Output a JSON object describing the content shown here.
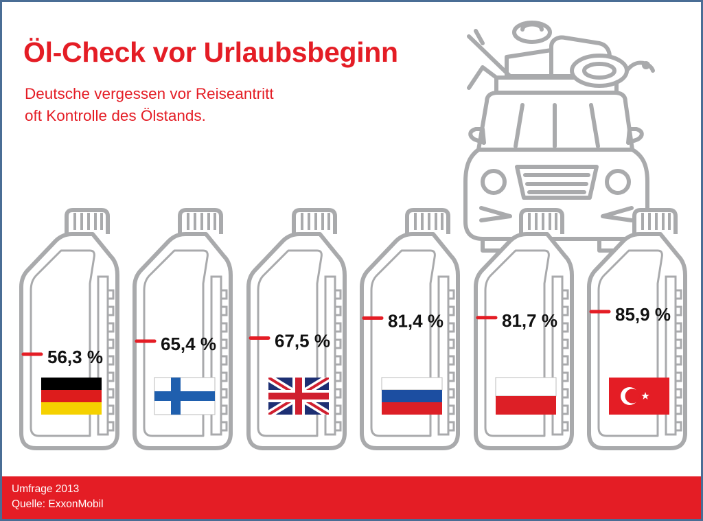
{
  "title": "Öl-Check vor Urlaubsbeginn",
  "subtitle_lines": [
    "Deutsche vergessen vor Reiseantritt",
    "oft Kontrolle des Ölstands."
  ],
  "footer": {
    "survey": "Umfrage 2013",
    "source": "Quelle: ExxonMobil"
  },
  "colors": {
    "accent": "#e41d25",
    "outline": "#a9aaac",
    "frame": "#4a6d95"
  },
  "chart_data": {
    "type": "bar",
    "categories": [
      "Deutschland",
      "Finnland",
      "Vereinigtes Königreich",
      "Russland",
      "Polen",
      "Türkei"
    ],
    "values": [
      56.3,
      65.4,
      67.5,
      81.4,
      81.7,
      85.9
    ],
    "value_labels": [
      "56,3 %",
      "65,4 %",
      "67,5 %",
      "81,4 %",
      "81,7 %",
      "85,9 %"
    ],
    "flags": [
      "germany-flag",
      "finland-flag",
      "uk-flag",
      "russia-flag",
      "poland-flag",
      "turkey-flag"
    ],
    "title": "Öl-Check vor Urlaubsbeginn",
    "unit": "%"
  }
}
